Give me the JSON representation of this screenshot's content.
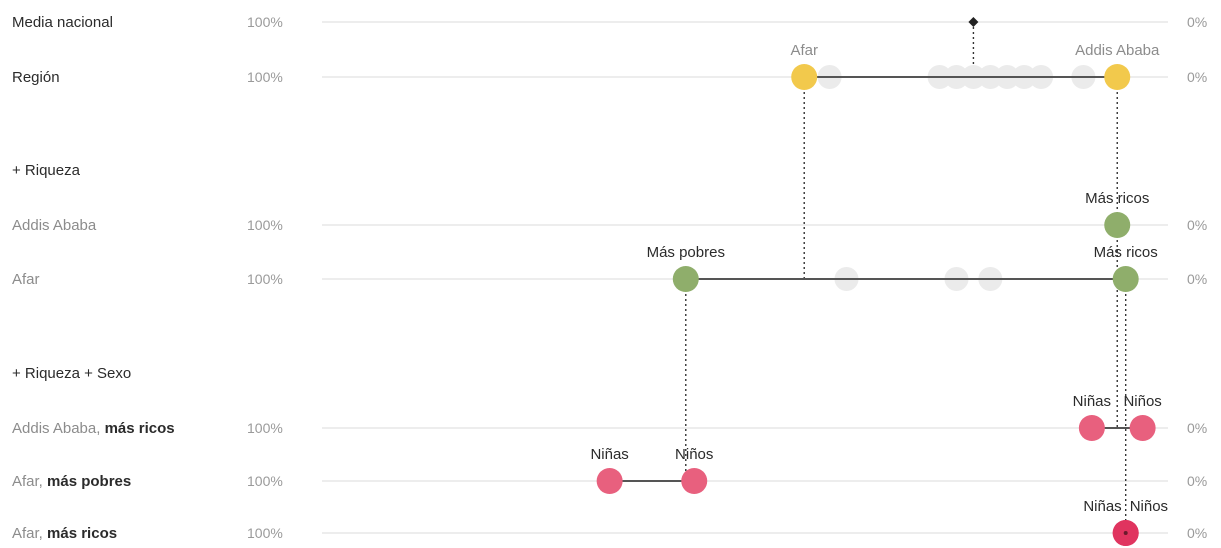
{
  "chart_data": {
    "type": "dot-range",
    "x_scale": {
      "left_label": "100%",
      "right_label": "0%",
      "xlim": [
        100,
        0
      ]
    },
    "colors": {
      "region": "#f2c94c",
      "wealth": "#8fae6b",
      "sex": "#e8607e",
      "sex_dark": "#e0345f",
      "ghost": "#ebebeb",
      "line": "#555555",
      "grid": "#e2e2e2"
    },
    "rows": [
      {
        "id": "media",
        "label": "Media nacional",
        "style": "dark",
        "left_pct": "100%",
        "right_pct": "0%",
        "points": [
          {
            "value": 23,
            "kind": "diamond"
          }
        ]
      },
      {
        "id": "region",
        "label": "Región",
        "style": "dark",
        "left_pct": "100%",
        "right_pct": "0%",
        "points": [
          {
            "value": 43,
            "kind": "region",
            "label": "Afar"
          },
          {
            "value": 6,
            "kind": "region",
            "label": "Addis Ababa"
          }
        ],
        "ghosts": [
          40,
          27,
          25,
          23,
          21,
          19,
          17,
          15,
          10
        ]
      },
      {
        "id": "h_riqueza",
        "label": "+ Riqueza",
        "style": "header"
      },
      {
        "id": "addis_w",
        "label": "Addis Ababa",
        "style": "grey",
        "left_pct": "100%",
        "right_pct": "0%",
        "points": [
          {
            "value": 6,
            "kind": "wealth",
            "label": "Más ricos"
          }
        ]
      },
      {
        "id": "afar_w",
        "label": "Afar",
        "style": "grey",
        "left_pct": "100%",
        "right_pct": "0%",
        "points": [
          {
            "value": 57,
            "kind": "wealth",
            "label": "Más pobres"
          },
          {
            "value": 5,
            "kind": "wealth",
            "label": "Más ricos"
          }
        ],
        "ghosts": [
          38,
          25,
          21
        ]
      },
      {
        "id": "h_riqueza_sexo",
        "label": "+ Riqueza + Sexo",
        "style": "header"
      },
      {
        "id": "addis_sex",
        "label": "Addis Ababa,",
        "label_bold": "más ricos",
        "style": "grey",
        "left_pct": "100%",
        "right_pct": "0%",
        "points": [
          {
            "value": 9,
            "kind": "sex",
            "label": "Niñas"
          },
          {
            "value": 3,
            "kind": "sex",
            "label": "Niños"
          }
        ]
      },
      {
        "id": "afar_poor_sex",
        "label": "Afar,",
        "label_bold": "más pobres",
        "style": "grey",
        "left_pct": "100%",
        "right_pct": "0%",
        "points": [
          {
            "value": 66,
            "kind": "sex",
            "label": "Niñas"
          },
          {
            "value": 56,
            "kind": "sex",
            "label": "Niños"
          }
        ]
      },
      {
        "id": "afar_rich_sex",
        "label": "Afar,",
        "label_bold": "más ricos",
        "style": "grey",
        "left_pct": "100%",
        "right_pct": "0%",
        "points": [
          {
            "value": 5,
            "kind": "sex_dark",
            "label": "Niñas"
          },
          {
            "value": 5,
            "kind": "sex_dark",
            "label": "Niños"
          }
        ]
      }
    ],
    "connectors": [
      {
        "from": "media",
        "value": 23,
        "to": "region"
      },
      {
        "from": "region",
        "value": 43,
        "to": "afar_w"
      },
      {
        "from": "region",
        "value": 6,
        "to": "addis_w"
      },
      {
        "from": "afar_w",
        "value": 57,
        "to": "afar_poor_sex"
      },
      {
        "from": "afar_w",
        "value": 5,
        "to": "afar_rich_sex"
      },
      {
        "from": "addis_w",
        "value": 6,
        "to": "addis_sex"
      }
    ]
  }
}
